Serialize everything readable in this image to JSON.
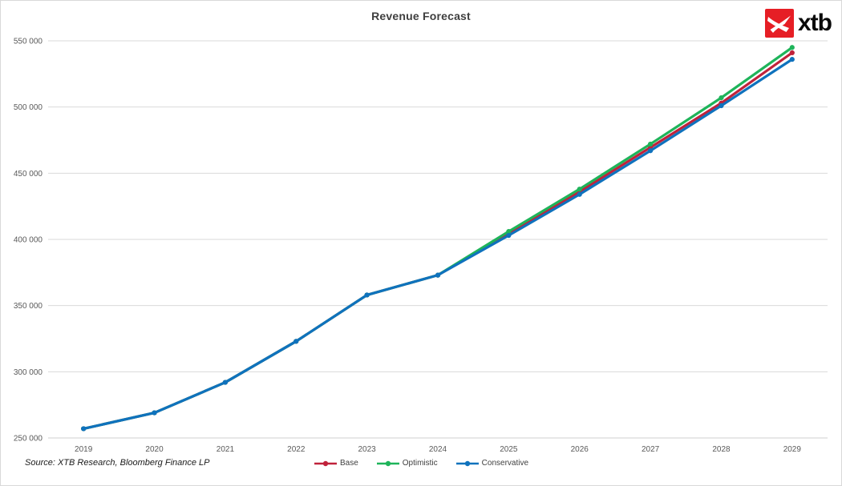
{
  "chart": {
    "title": "Revenue Forecast"
  },
  "logo": {
    "text": "xtb",
    "square_color": "#e61e25",
    "symbol": "xtb-bird-icon"
  },
  "source_note": "Source: XTB Research, Bloomberg Finance LP",
  "chart_data": {
    "type": "line",
    "title": "Revenue Forecast",
    "categories": [
      "2019",
      "2020",
      "2021",
      "2022",
      "2023",
      "2024",
      "2025",
      "2026",
      "2027",
      "2028",
      "2029"
    ],
    "series": [
      {
        "name": "Base",
        "color": "#c0223b",
        "values": [
          257000,
          269000,
          292000,
          323000,
          358000,
          373000,
          404500,
          436000,
          469500,
          503000,
          541000
        ]
      },
      {
        "name": "Optimistic",
        "color": "#1eb45a",
        "values": [
          257000,
          269000,
          292000,
          323000,
          358000,
          373000,
          406000,
          438000,
          472000,
          507000,
          545000
        ]
      },
      {
        "name": "Conservative",
        "color": "#0f72bd",
        "values": [
          257000,
          269000,
          292000,
          323000,
          358000,
          373000,
          403000,
          434000,
          467000,
          501000,
          536000
        ]
      }
    ],
    "ylim": [
      250000,
      550000
    ],
    "ytick_step": 50000,
    "ytick_labels": [
      "250 000",
      "300 000",
      "350 000",
      "400 000",
      "450 000",
      "500 000",
      "550 000"
    ],
    "grid": "horizontal",
    "legend_position": "bottom",
    "xlabel": "",
    "ylabel": ""
  }
}
